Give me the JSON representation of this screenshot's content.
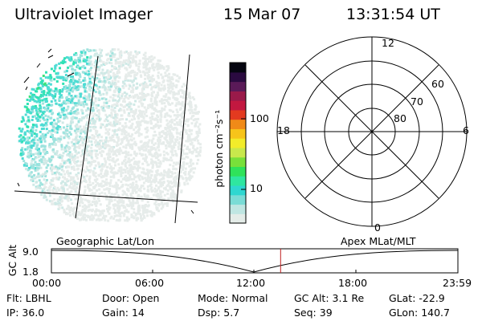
{
  "header": {
    "instrument": "Ultraviolet Imager",
    "date": "15 Mar 07",
    "time": "13:31:54 UT"
  },
  "colorbar": {
    "unit_label": "photon cm⁻²s⁻¹",
    "tick_labels": [
      "100",
      "10"
    ],
    "scale": "log",
    "colors": [
      "#e4ece8",
      "#bfe6e2",
      "#7adcd6",
      "#2fd7d0",
      "#2fe6a0",
      "#2fe25a",
      "#78e03a",
      "#c8e84c",
      "#f2ec2a",
      "#f7c41a",
      "#f08a18",
      "#e33a20",
      "#c21840",
      "#9a1a4a",
      "#5a1a58",
      "#2a0a40",
      "#050510"
    ]
  },
  "polar_plot": {
    "mlt_labels": [
      "12",
      "18",
      "6",
      "0"
    ],
    "mlat_labels": [
      "60",
      "70",
      "80"
    ]
  },
  "timeline": {
    "left_label": "Geographic Lat/Lon",
    "right_label": "Apex MLat/MLT",
    "y_axis_label": "GC Alt",
    "y_ticks": [
      "9.0",
      "1.8"
    ],
    "x_ticks": [
      "00:00",
      "06:00",
      "12:00",
      "18:00",
      "23:59"
    ],
    "marker_time": "13:31:54",
    "accent_color": "#c02020"
  },
  "status": {
    "row1": [
      {
        "label": "Flt:",
        "value": "LBHL"
      },
      {
        "label": "Door:",
        "value": "Open"
      },
      {
        "label": "Mode:",
        "value": "Normal"
      },
      {
        "label": "GC Alt:",
        "value": "3.1 Re"
      },
      {
        "label": "GLat:",
        "value": "-22.9"
      }
    ],
    "row2": [
      {
        "label": "IP:",
        "value": "36.0"
      },
      {
        "label": "Gain:",
        "value": "14"
      },
      {
        "label": "Dsp:",
        "value": "5.7"
      },
      {
        "label": "Seq:",
        "value": "39"
      },
      {
        "label": "GLon:",
        "value": "140.7"
      }
    ]
  }
}
